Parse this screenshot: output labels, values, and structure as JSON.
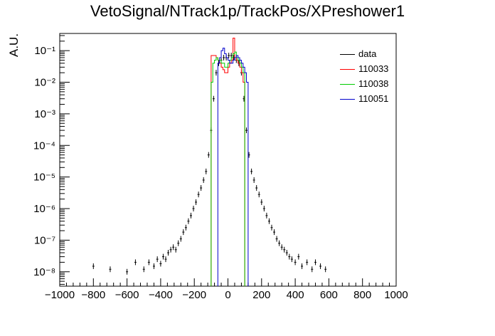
{
  "chart_data": {
    "type": "histogram",
    "title": "VetoSignal/NTrack1p/TrackPos/XPreshower1",
    "ylabel": "A.U.",
    "xlabel": "",
    "xlim": [
      -1000,
      1000
    ],
    "ylim": [
      3.5e-09,
      0.35
    ],
    "log_y": true,
    "grid": false,
    "legend_position": "top-right",
    "x_ticks": [
      "−1000",
      "−800",
      "−600",
      "−400",
      "−200",
      "0",
      "200",
      "400",
      "600",
      "800",
      "1000"
    ],
    "y_ticks": [
      "10⁻⁸",
      "10⁻⁷",
      "10⁻⁶",
      "10⁻⁵",
      "10⁻⁴",
      "10⁻³",
      "10⁻²",
      "10⁻¹"
    ],
    "series": [
      {
        "name": "data",
        "color": "#000000",
        "points": [
          [
            -800,
            1.5e-08
          ],
          [
            -700,
            1.2e-08
          ],
          [
            -600,
            1e-08
          ],
          [
            -550,
            2e-08
          ],
          [
            -500,
            1.2e-08
          ],
          [
            -470,
            2e-08
          ],
          [
            -440,
            1.5e-08
          ],
          [
            -420,
            2.5e-08
          ],
          [
            -400,
            1.8e-08
          ],
          [
            -385,
            3e-08
          ],
          [
            -370,
            2.5e-08
          ],
          [
            -355,
            4e-08
          ],
          [
            -340,
            5e-08
          ],
          [
            -325,
            6e-08
          ],
          [
            -310,
            5e-08
          ],
          [
            -295,
            8e-08
          ],
          [
            -280,
            1.1e-07
          ],
          [
            -265,
            1.8e-07
          ],
          [
            -250,
            2.5e-07
          ],
          [
            -235,
            4e-07
          ],
          [
            -220,
            6e-07
          ],
          [
            -205,
            1e-06
          ],
          [
            -190,
            1.6e-06
          ],
          [
            -175,
            2.8e-06
          ],
          [
            -160,
            4.5e-06
          ],
          [
            -145,
            8e-06
          ],
          [
            -130,
            1.5e-05
          ],
          [
            -115,
            5e-05
          ],
          [
            -100,
            0.0003
          ],
          [
            -85,
            0.003
          ],
          [
            -70,
            0.02
          ],
          [
            -55,
            0.04
          ],
          [
            -40,
            0.05
          ],
          [
            -25,
            0.06
          ],
          [
            -10,
            0.06
          ],
          [
            5,
            0.07
          ],
          [
            20,
            0.07
          ],
          [
            35,
            0.06
          ],
          [
            50,
            0.05
          ],
          [
            65,
            0.04
          ],
          [
            80,
            0.02
          ],
          [
            95,
            0.003
          ],
          [
            110,
            0.0003
          ],
          [
            125,
            5e-05
          ],
          [
            140,
            1.5e-05
          ],
          [
            155,
            8e-06
          ],
          [
            170,
            4.5e-06
          ],
          [
            185,
            2.8e-06
          ],
          [
            200,
            1.6e-06
          ],
          [
            215,
            1e-06
          ],
          [
            230,
            6e-07
          ],
          [
            245,
            4e-07
          ],
          [
            260,
            2.5e-07
          ],
          [
            275,
            1.8e-07
          ],
          [
            290,
            1.1e-07
          ],
          [
            305,
            8e-08
          ],
          [
            320,
            6e-08
          ],
          [
            335,
            5e-08
          ],
          [
            350,
            4e-08
          ],
          [
            365,
            3e-08
          ],
          [
            380,
            2.5e-08
          ],
          [
            400,
            2e-08
          ],
          [
            420,
            3e-08
          ],
          [
            440,
            1.5e-08
          ],
          [
            470,
            2e-08
          ],
          [
            500,
            1.2e-08
          ],
          [
            520,
            2e-08
          ],
          [
            550,
            1.5e-08
          ],
          [
            580,
            1.2e-08
          ]
        ]
      },
      {
        "name": "110033",
        "color": "#ff0000",
        "bin_edges": [
          -100,
          -90,
          -80,
          -70,
          -60,
          -50,
          -40,
          -30,
          -20,
          -10,
          0,
          10,
          20,
          30,
          40,
          50,
          60,
          70,
          80,
          90,
          100
        ],
        "values": [
          0.07,
          0.07,
          0.07,
          0.06,
          0.05,
          0.04,
          0.03,
          0.025,
          0.02,
          0.02,
          0.03,
          0.04,
          0.05,
          0.25,
          0.06,
          0.05,
          0.04,
          0.03,
          0.02,
          0.01
        ]
      },
      {
        "name": "110038",
        "color": "#00cc00",
        "bin_edges": [
          -100,
          -90,
          -80,
          -70,
          -60,
          -50,
          -40,
          -30,
          -20,
          -10,
          0,
          10,
          20,
          30,
          40,
          50,
          60,
          70,
          80,
          90,
          100
        ],
        "values": [
          0.01,
          0.04,
          0.05,
          0.06,
          0.05,
          0.05,
          0.04,
          0.04,
          0.03,
          0.03,
          0.04,
          0.05,
          0.06,
          0.08,
          0.09,
          0.06,
          0.05,
          0.04,
          0.03,
          0.02
        ]
      },
      {
        "name": "110051",
        "color": "#0000cc",
        "bin_edges": [
          -60,
          -50,
          -40,
          -30,
          -20,
          -10,
          0,
          10,
          20,
          30,
          40,
          50,
          60,
          70,
          80,
          90,
          100,
          110,
          120
        ],
        "values": [
          0.04,
          0.06,
          0.1,
          0.12,
          0.08,
          0.06,
          0.05,
          0.04,
          0.04,
          0.05,
          0.06,
          0.07,
          0.06,
          0.05,
          0.04,
          0.03,
          0.02,
          0.01
        ]
      }
    ]
  }
}
